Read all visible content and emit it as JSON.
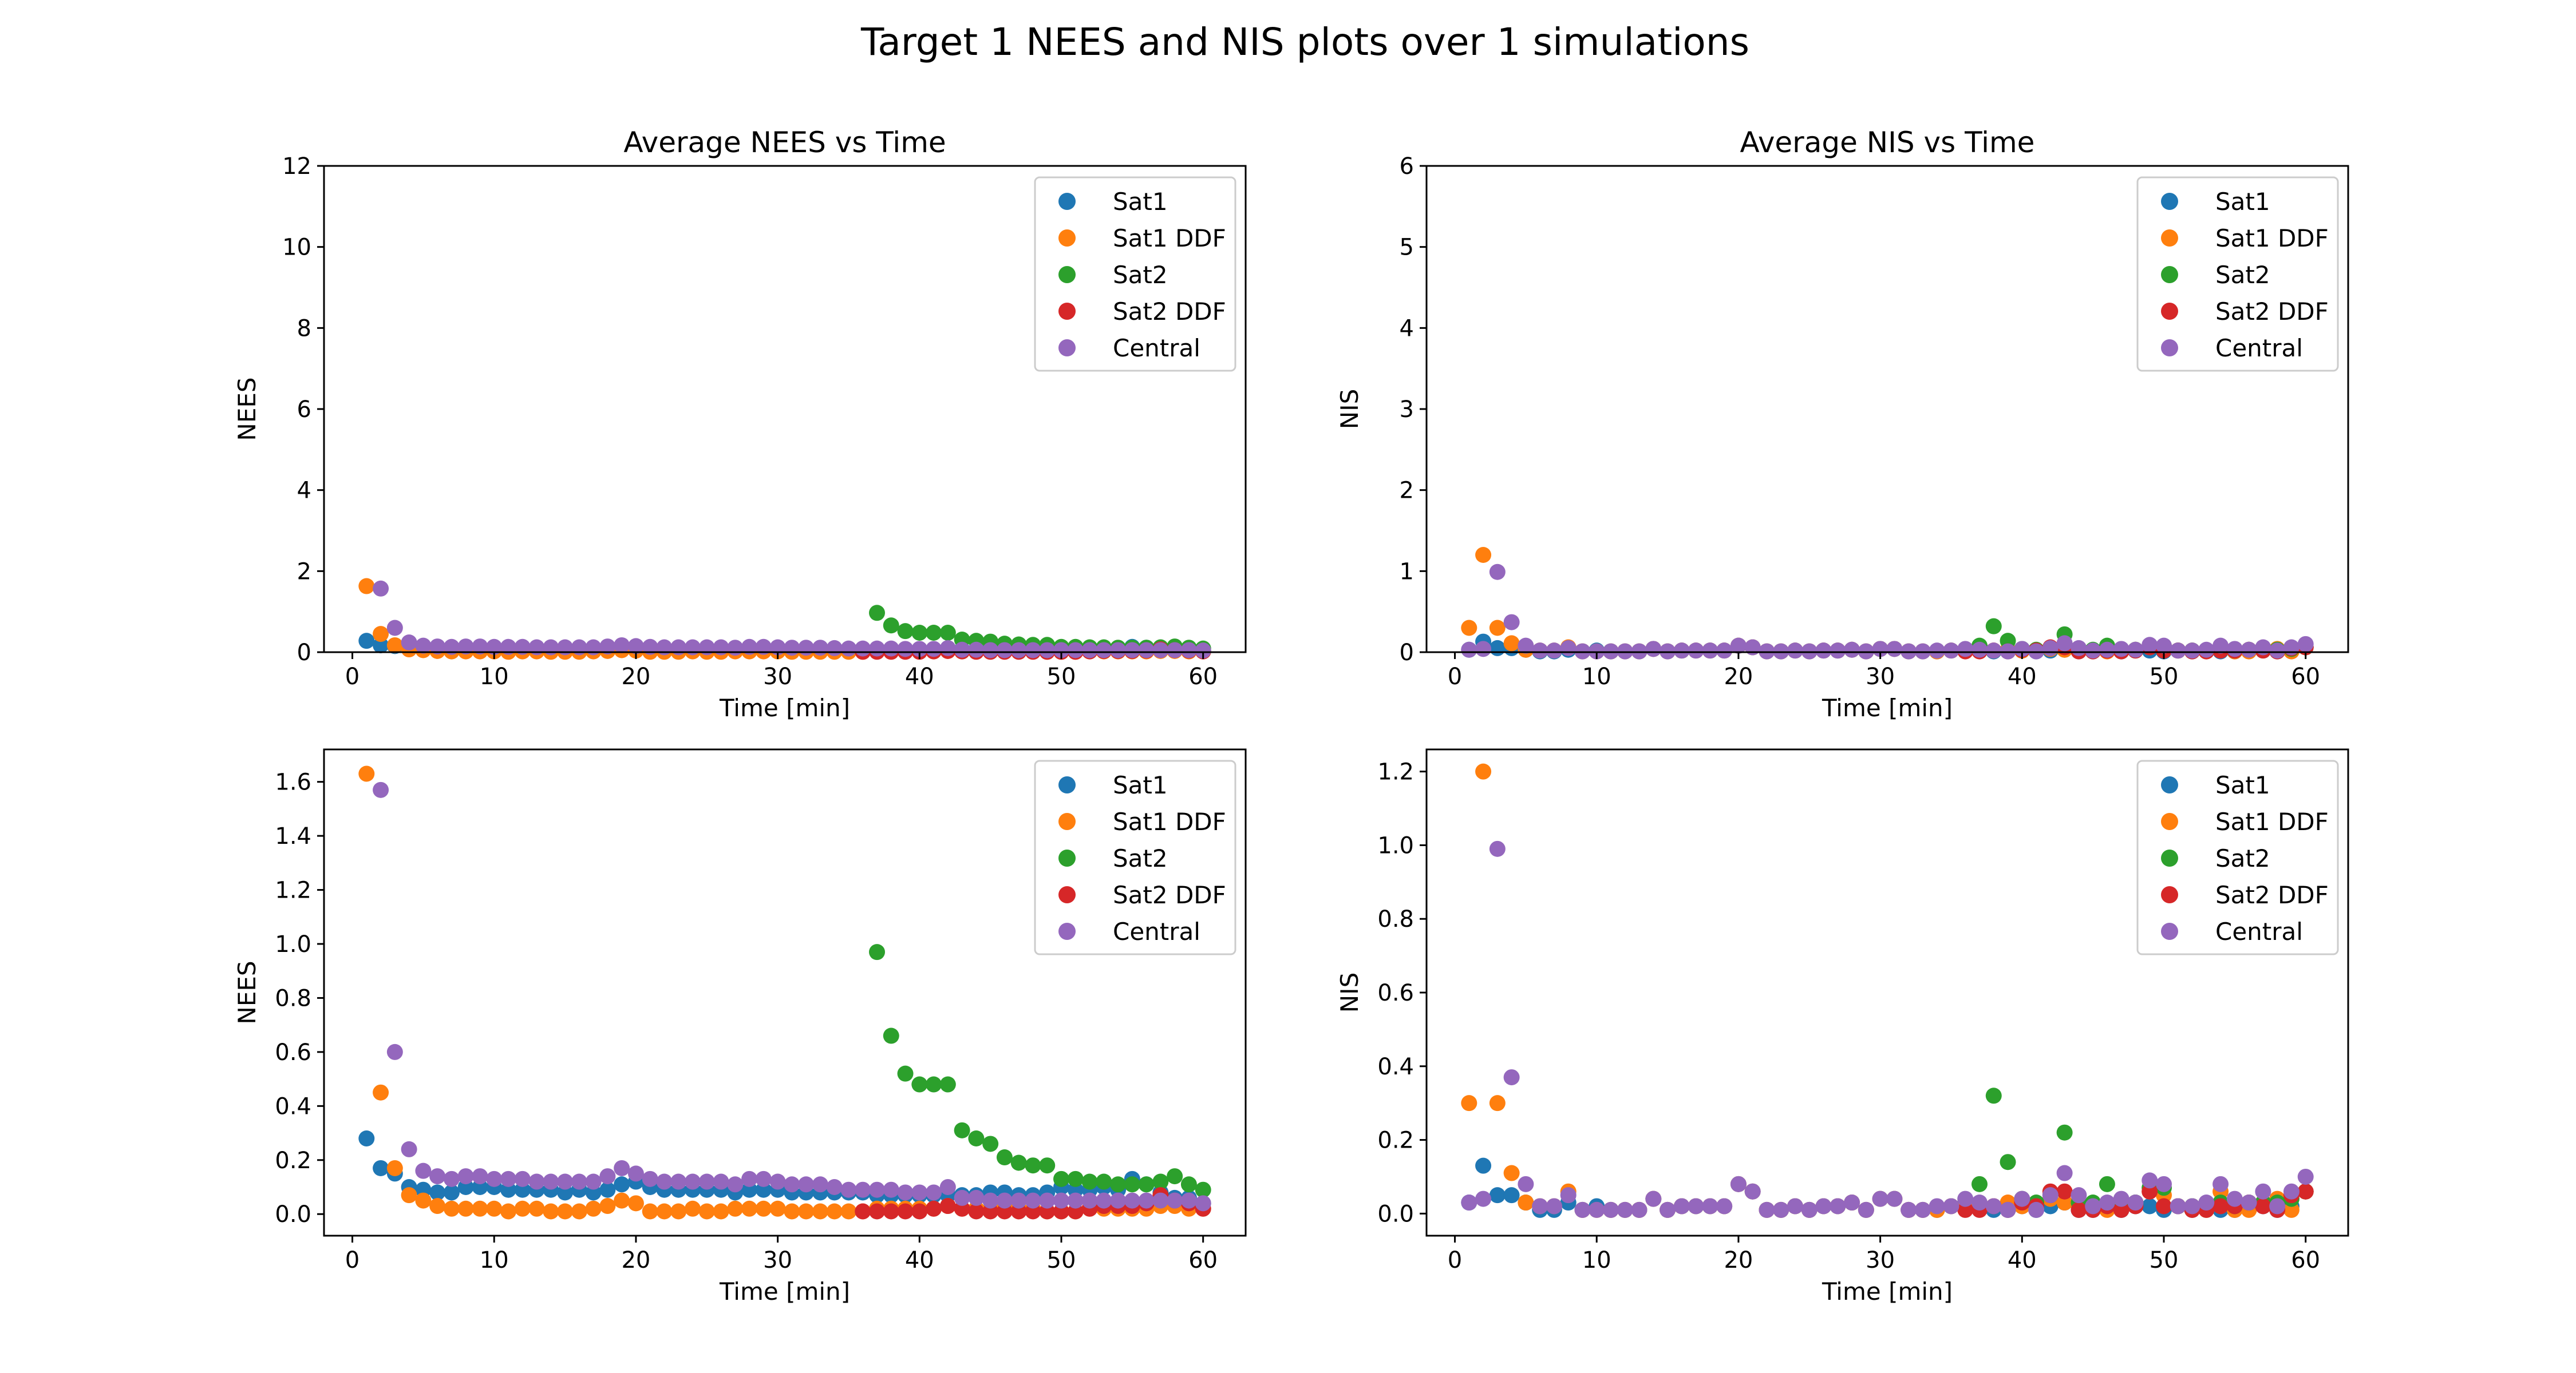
{
  "figure_title": "Target 1 NEES and NIS plots over 1 simulations",
  "colors": {
    "Sat1": "#1f77b4",
    "Sat1 DDF": "#ff7f0e",
    "Sat2": "#2ca02c",
    "Sat2 DDF": "#d62728",
    "Central": "#9467bd"
  },
  "chart_data": [
    {
      "type": "scatter",
      "title": "Average NEES vs Time",
      "xlabel": "Time [min]",
      "ylabel": "NEES",
      "xlim": [
        -2,
        63
      ],
      "ylim": [
        0,
        12
      ],
      "xticks": [
        0,
        10,
        20,
        30,
        40,
        50,
        60
      ],
      "yticks": [
        0,
        2,
        4,
        6,
        8,
        10,
        12
      ],
      "legend": [
        "Sat1",
        "Sat1 DDF",
        "Sat2",
        "Sat2 DDF",
        "Central"
      ],
      "legend_position": "top-right",
      "dataset": "nees"
    },
    {
      "type": "scatter",
      "title": "Average NIS vs Time",
      "xlabel": "Time [min]",
      "ylabel": "NIS",
      "xlim": [
        -2,
        63
      ],
      "ylim": [
        0,
        6
      ],
      "xticks": [
        0,
        10,
        20,
        30,
        40,
        50,
        60
      ],
      "yticks": [
        0,
        1,
        2,
        3,
        4,
        5,
        6
      ],
      "legend": [
        "Sat1",
        "Sat1 DDF",
        "Sat2",
        "Sat2 DDF",
        "Central"
      ],
      "legend_position": "top-right",
      "dataset": "nis"
    },
    {
      "type": "scatter",
      "title": "",
      "xlabel": "Time [min]",
      "ylabel": "NEES",
      "xlim": [
        -2,
        63
      ],
      "ylim": [
        -0.08,
        1.72
      ],
      "xticks": [
        0,
        10,
        20,
        30,
        40,
        50,
        60
      ],
      "yticks": [
        0.0,
        0.2,
        0.4,
        0.6,
        0.8,
        1.0,
        1.2,
        1.4,
        1.6
      ],
      "legend": [
        "Sat1",
        "Sat1 DDF",
        "Sat2",
        "Sat2 DDF",
        "Central"
      ],
      "legend_position": "top-right",
      "dataset": "nees"
    },
    {
      "type": "scatter",
      "title": "",
      "xlabel": "Time [min]",
      "ylabel": "NIS",
      "xlim": [
        -2,
        63
      ],
      "ylim": [
        -0.06,
        1.26
      ],
      "xticks": [
        0,
        10,
        20,
        30,
        40,
        50,
        60
      ],
      "yticks": [
        0.0,
        0.2,
        0.4,
        0.6,
        0.8,
        1.0,
        1.2
      ],
      "legend": [
        "Sat1",
        "Sat1 DDF",
        "Sat2",
        "Sat2 DDF",
        "Central"
      ],
      "legend_position": "top-right",
      "dataset": "nis"
    }
  ],
  "datasets": {
    "nees": [
      {
        "name": "Sat1",
        "x": [
          1,
          2,
          3,
          4,
          5,
          6,
          7,
          8,
          9,
          10,
          11,
          12,
          13,
          14,
          15,
          16,
          17,
          18,
          19,
          20,
          21,
          22,
          23,
          24,
          25,
          26,
          27,
          28,
          29,
          30,
          31,
          32,
          33,
          34,
          35,
          36,
          37,
          38,
          39,
          40,
          41,
          42,
          43,
          44,
          45,
          46,
          47,
          48,
          49,
          50,
          51,
          52,
          53,
          54,
          55,
          56,
          57,
          58,
          59,
          60
        ],
        "y": [
          0.28,
          0.17,
          0.15,
          0.1,
          0.09,
          0.08,
          0.08,
          0.1,
          0.1,
          0.1,
          0.09,
          0.09,
          0.09,
          0.09,
          0.08,
          0.09,
          0.08,
          0.09,
          0.11,
          0.12,
          0.1,
          0.09,
          0.09,
          0.09,
          0.09,
          0.09,
          0.08,
          0.09,
          0.09,
          0.09,
          0.08,
          0.08,
          0.08,
          0.08,
          0.08,
          0.08,
          0.07,
          0.07,
          0.07,
          0.07,
          0.07,
          0.07,
          0.07,
          0.07,
          0.08,
          0.08,
          0.07,
          0.07,
          0.08,
          0.1,
          0.09,
          0.09,
          0.1,
          0.09,
          0.13,
          0.11,
          0.08,
          0.06,
          0.06,
          0.04
        ]
      },
      {
        "name": "Sat1 DDF",
        "x": [
          1,
          2,
          3,
          4,
          5,
          6,
          7,
          8,
          9,
          10,
          11,
          12,
          13,
          14,
          15,
          16,
          17,
          18,
          19,
          20,
          21,
          22,
          23,
          24,
          25,
          26,
          27,
          28,
          29,
          30,
          31,
          32,
          33,
          34,
          35,
          36,
          37,
          38,
          39,
          40,
          41,
          42,
          43,
          44,
          45,
          46,
          47,
          48,
          49,
          50,
          51,
          52,
          53,
          54,
          55,
          56,
          57,
          58,
          59,
          60
        ],
        "y": [
          1.63,
          0.45,
          0.17,
          0.07,
          0.05,
          0.03,
          0.02,
          0.02,
          0.02,
          0.02,
          0.01,
          0.02,
          0.02,
          0.01,
          0.01,
          0.01,
          0.02,
          0.03,
          0.05,
          0.04,
          0.01,
          0.01,
          0.01,
          0.02,
          0.01,
          0.01,
          0.02,
          0.02,
          0.02,
          0.02,
          0.01,
          0.01,
          0.01,
          0.01,
          0.01,
          0.01,
          0.02,
          0.02,
          0.02,
          0.02,
          0.02,
          0.03,
          0.02,
          0.02,
          0.02,
          0.03,
          0.02,
          0.02,
          0.01,
          0.01,
          0.01,
          0.02,
          0.02,
          0.02,
          0.02,
          0.02,
          0.03,
          0.03,
          0.02,
          0.02
        ]
      },
      {
        "name": "Sat2",
        "x": [
          37,
          38,
          39,
          40,
          41,
          42,
          43,
          44,
          45,
          46,
          47,
          48,
          49,
          50,
          51,
          52,
          53,
          54,
          55,
          56,
          57,
          58,
          59,
          60
        ],
        "y": [
          0.97,
          0.66,
          0.52,
          0.48,
          0.48,
          0.48,
          0.31,
          0.28,
          0.26,
          0.21,
          0.19,
          0.18,
          0.18,
          0.13,
          0.13,
          0.12,
          0.12,
          0.11,
          0.11,
          0.11,
          0.12,
          0.14,
          0.11,
          0.09
        ]
      },
      {
        "name": "Sat2 DDF",
        "x": [
          36,
          37,
          38,
          39,
          40,
          41,
          42,
          43,
          44,
          45,
          46,
          47,
          48,
          49,
          50,
          51,
          52,
          53,
          54,
          55,
          56,
          57,
          58,
          59,
          60
        ],
        "y": [
          0.01,
          0.01,
          0.01,
          0.01,
          0.01,
          0.02,
          0.03,
          0.02,
          0.01,
          0.01,
          0.01,
          0.01,
          0.01,
          0.01,
          0.01,
          0.01,
          0.02,
          0.03,
          0.03,
          0.03,
          0.04,
          0.07,
          0.05,
          0.04,
          0.02
        ]
      },
      {
        "name": "Central",
        "x": [
          2,
          3,
          4,
          5,
          6,
          7,
          8,
          9,
          10,
          11,
          12,
          13,
          14,
          15,
          16,
          17,
          18,
          19,
          20,
          21,
          22,
          23,
          24,
          25,
          26,
          27,
          28,
          29,
          30,
          31,
          32,
          33,
          34,
          35,
          36,
          37,
          38,
          39,
          40,
          41,
          42,
          43,
          44,
          45,
          46,
          47,
          48,
          49,
          50,
          51,
          52,
          53,
          54,
          55,
          56,
          57,
          58,
          59,
          60
        ],
        "y": [
          1.57,
          0.6,
          0.24,
          0.16,
          0.14,
          0.13,
          0.14,
          0.14,
          0.13,
          0.13,
          0.13,
          0.12,
          0.12,
          0.12,
          0.12,
          0.12,
          0.14,
          0.17,
          0.15,
          0.13,
          0.12,
          0.12,
          0.12,
          0.12,
          0.12,
          0.11,
          0.13,
          0.13,
          0.12,
          0.11,
          0.11,
          0.11,
          0.1,
          0.09,
          0.09,
          0.09,
          0.09,
          0.08,
          0.08,
          0.08,
          0.1,
          0.06,
          0.06,
          0.05,
          0.05,
          0.05,
          0.05,
          0.05,
          0.05,
          0.05,
          0.05,
          0.05,
          0.05,
          0.05,
          0.05,
          0.05,
          0.05,
          0.05,
          0.04
        ]
      }
    ],
    "nis": [
      {
        "name": "Sat1",
        "x": [
          1,
          2,
          3,
          4,
          5,
          6,
          7,
          8,
          9,
          10,
          11,
          12,
          13,
          14,
          15,
          16,
          17,
          18,
          19,
          20,
          21,
          22,
          23,
          24,
          25,
          26,
          27,
          28,
          29,
          30,
          31,
          32,
          33,
          34,
          35,
          36,
          37,
          38,
          39,
          40,
          41,
          42,
          43,
          44,
          45,
          46,
          47,
          48,
          49,
          50,
          51,
          52,
          53,
          54,
          55,
          56,
          57,
          58,
          59,
          60
        ],
        "y": [
          0.03,
          0.13,
          0.05,
          0.05,
          0.03,
          0.01,
          0.01,
          0.03,
          0.01,
          0.02,
          0.01,
          0.01,
          0.01,
          0.04,
          0.01,
          0.02,
          0.02,
          0.02,
          0.02,
          0.08,
          0.06,
          0.01,
          0.01,
          0.02,
          0.01,
          0.02,
          0.02,
          0.03,
          0.01,
          0.04,
          0.04,
          0.01,
          0.01,
          0.01,
          0.02,
          0.03,
          0.02,
          0.01,
          0.01,
          0.02,
          0.01,
          0.02,
          0.03,
          0.01,
          0.01,
          0.02,
          0.01,
          0.02,
          0.02,
          0.01,
          0.02,
          0.01,
          0.02,
          0.01,
          0.01,
          0.02,
          0.02,
          0.01,
          0.02,
          0.06
        ]
      },
      {
        "name": "Sat1 DDF",
        "x": [
          1,
          2,
          3,
          4,
          5,
          6,
          7,
          8,
          9,
          10,
          11,
          12,
          13,
          14,
          15,
          16,
          17,
          18,
          19,
          20,
          21,
          22,
          23,
          24,
          25,
          26,
          27,
          28,
          29,
          30,
          31,
          32,
          33,
          34,
          35,
          36,
          37,
          38,
          39,
          40,
          41,
          42,
          43,
          44,
          45,
          46,
          47,
          48,
          49,
          50,
          51,
          52,
          53,
          54,
          55,
          56,
          57,
          58,
          59,
          60
        ],
        "y": [
          0.3,
          1.2,
          0.3,
          0.11,
          0.03,
          0.02,
          0.02,
          0.06,
          0.01,
          0.01,
          0.01,
          0.01,
          0.01,
          0.04,
          0.01,
          0.02,
          0.02,
          0.02,
          0.02,
          0.08,
          0.06,
          0.01,
          0.01,
          0.02,
          0.01,
          0.02,
          0.02,
          0.03,
          0.01,
          0.04,
          0.04,
          0.01,
          0.01,
          0.01,
          0.02,
          0.02,
          0.02,
          0.02,
          0.03,
          0.02,
          0.02,
          0.04,
          0.03,
          0.02,
          0.02,
          0.01,
          0.02,
          0.03,
          0.06,
          0.05,
          0.02,
          0.02,
          0.01,
          0.06,
          0.01,
          0.01,
          0.03,
          0.04,
          0.01,
          0.06
        ]
      },
      {
        "name": "Sat2",
        "x": [
          37,
          38,
          39,
          40,
          41,
          42,
          43,
          44,
          45,
          46,
          47,
          48,
          49,
          50,
          51,
          52,
          53,
          54,
          55,
          56,
          57,
          58,
          59,
          60
        ],
        "y": [
          0.08,
          0.32,
          0.14,
          0.04,
          0.03,
          0.05,
          0.22,
          0.03,
          0.03,
          0.08,
          0.02,
          0.03,
          0.07,
          0.07,
          0.02,
          0.02,
          0.02,
          0.03,
          0.02,
          0.03,
          0.03,
          0.03,
          0.04,
          0.06
        ]
      },
      {
        "name": "Sat2 DDF",
        "x": [
          36,
          37,
          38,
          39,
          40,
          41,
          42,
          43,
          44,
          45,
          46,
          47,
          48,
          49,
          50,
          51,
          52,
          53,
          54,
          55,
          56,
          57,
          58,
          59,
          60
        ],
        "y": [
          0.01,
          0.01,
          0.02,
          0.01,
          0.03,
          0.02,
          0.06,
          0.06,
          0.01,
          0.01,
          0.02,
          0.01,
          0.02,
          0.06,
          0.02,
          0.02,
          0.01,
          0.01,
          0.02,
          0.02,
          0.03,
          0.02,
          0.01,
          0.05,
          0.06
        ]
      },
      {
        "name": "Central",
        "x": [
          1,
          2,
          3,
          4,
          5,
          6,
          7,
          8,
          9,
          10,
          11,
          12,
          13,
          14,
          15,
          16,
          17,
          18,
          19,
          20,
          21,
          22,
          23,
          24,
          25,
          26,
          27,
          28,
          29,
          30,
          31,
          32,
          33,
          34,
          35,
          36,
          37,
          38,
          39,
          40,
          41,
          42,
          43,
          44,
          45,
          46,
          47,
          48,
          49,
          50,
          51,
          52,
          53,
          54,
          55,
          56,
          57,
          58,
          59,
          60
        ],
        "y": [
          0.03,
          0.04,
          0.99,
          0.37,
          0.08,
          0.02,
          0.02,
          0.05,
          0.01,
          0.01,
          0.01,
          0.01,
          0.01,
          0.04,
          0.01,
          0.02,
          0.02,
          0.02,
          0.02,
          0.08,
          0.06,
          0.01,
          0.01,
          0.02,
          0.01,
          0.02,
          0.02,
          0.03,
          0.01,
          0.04,
          0.04,
          0.01,
          0.01,
          0.02,
          0.02,
          0.04,
          0.03,
          0.02,
          0.01,
          0.04,
          0.01,
          0.05,
          0.11,
          0.05,
          0.02,
          0.03,
          0.04,
          0.03,
          0.09,
          0.08,
          0.02,
          0.02,
          0.03,
          0.08,
          0.04,
          0.03,
          0.06,
          0.02,
          0.06,
          0.1
        ]
      }
    ]
  }
}
